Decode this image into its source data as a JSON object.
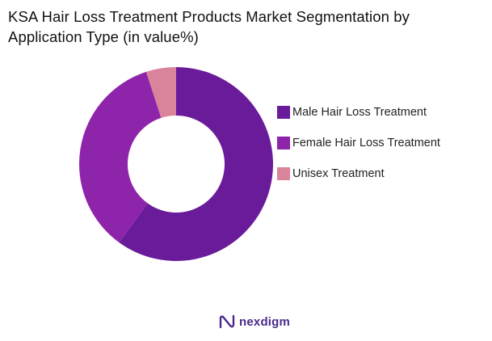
{
  "title": "KSA Hair Loss Treatment Products Market Segmentation by Application Type (in value%)",
  "chart_data": {
    "type": "pie",
    "variant": "donut",
    "title": "KSA Hair Loss Treatment Products Market Segmentation by Application Type (in value%)",
    "legend_position": "right",
    "series": [
      {
        "name": "Male Hair Loss Treatment",
        "value": 60,
        "color": "#6a1b9a"
      },
      {
        "name": "Female Hair Loss Treatment",
        "value": 35,
        "color": "#8e24aa"
      },
      {
        "name": "Unisex Treatment",
        "value": 5,
        "color": "#d9849b"
      }
    ]
  },
  "brand": {
    "name": "nexdigm",
    "logo_icon": "nexdigm-logo-icon",
    "color": "#4a2a8a"
  }
}
